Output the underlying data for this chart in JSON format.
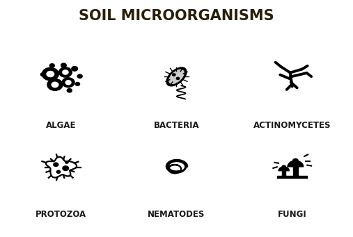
{
  "title": "SOIL MICROORGANISMS",
  "title_color": "#2a1f0a",
  "title_fontsize": 15,
  "title_fontweight": "bold",
  "background_color": "#ffffff",
  "label_color": "#1a1a1a",
  "label_fontsize": 8.5,
  "label_fontweight": "bold",
  "items": [
    {
      "label": "ALGAE",
      "col": 0,
      "row": 0
    },
    {
      "label": "BACTERIA",
      "col": 1,
      "row": 0
    },
    {
      "label": "ACTINOMYCETES",
      "col": 2,
      "row": 0
    },
    {
      "label": "PROTOZOA",
      "col": 0,
      "row": 1
    },
    {
      "label": "NEMATODES",
      "col": 1,
      "row": 1
    },
    {
      "label": "FUNGI",
      "col": 2,
      "row": 1
    }
  ],
  "grid_cols": 3,
  "grid_rows": 2
}
